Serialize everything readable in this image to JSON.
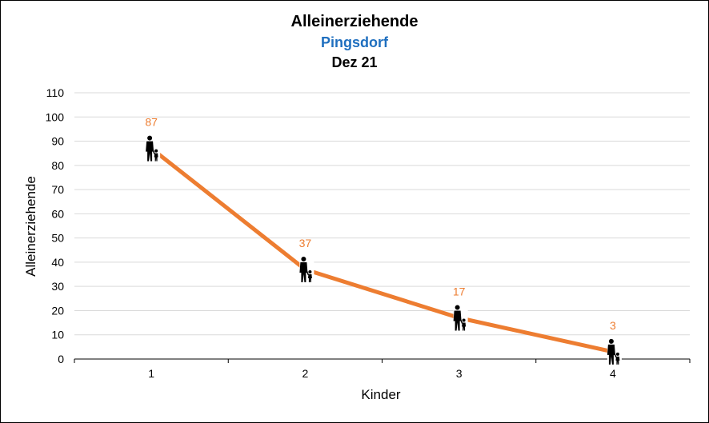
{
  "title": "Alleinerziehende",
  "subtitle": "Pingsdorf",
  "period": "Dez 21",
  "colors": {
    "line": "#ED7D31",
    "data_label": "#ED7D31",
    "subtitle": "#1F6FBF",
    "grid": "#D9D9D9",
    "axis": "#000000"
  },
  "chart_data": {
    "type": "line",
    "title": "Alleinerziehende",
    "xlabel": "Kinder",
    "ylabel": "Alleinerziehende",
    "x": [
      "1",
      "2",
      "3",
      "4"
    ],
    "series": [
      {
        "values": [
          87,
          37,
          17,
          3
        ],
        "marker": "single-parent-with-child-icon"
      }
    ],
    "ylim": [
      0,
      110
    ],
    "yticks": [
      0,
      10,
      20,
      30,
      40,
      50,
      60,
      70,
      80,
      90,
      100,
      110
    ],
    "grid": true,
    "legend": "none"
  }
}
